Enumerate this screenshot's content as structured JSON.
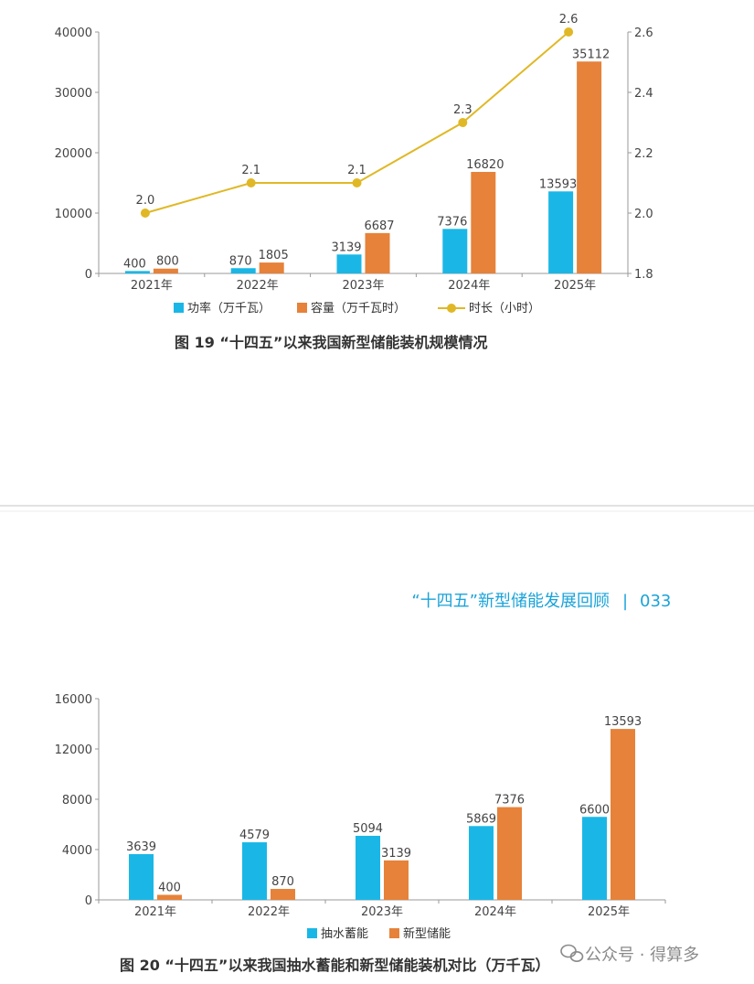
{
  "colors": {
    "power": "#1ab7e6",
    "capacity": "#e6823a",
    "duration": "#e0b826",
    "pumped": "#1ab7e6",
    "new_storage": "#e6823a",
    "accent": "#1aa3d9",
    "axis": "#999999"
  },
  "chart_data": [
    {
      "type": "bar",
      "categories": [
        "2021年",
        "2022年",
        "2023年",
        "2024年",
        "2025年"
      ],
      "series": [
        {
          "name": "功率（万千瓦）",
          "values": [
            400,
            870,
            3139,
            7376,
            13593
          ],
          "axis": "left"
        },
        {
          "name": "容量（万千瓦时）",
          "values": [
            800,
            1805,
            6687,
            16820,
            35112
          ],
          "axis": "left"
        },
        {
          "name": "时长（小时）",
          "type": "line",
          "values": [
            2.0,
            2.1,
            2.1,
            2.3,
            2.6
          ],
          "axis": "right"
        }
      ],
      "ylim": [
        0,
        40000
      ],
      "yticks": [
        "0",
        "10000",
        "20000",
        "30000",
        "40000"
      ],
      "y2lim": [
        1.8,
        2.6
      ],
      "y2ticks": [
        "1.8",
        "2.0",
        "2.2",
        "2.4",
        "2.6"
      ],
      "caption": "图 19 “十四五”以来我国新型储能装机规模情况",
      "legend_position": "bottom"
    },
    {
      "type": "bar",
      "categories": [
        "2021年",
        "2022年",
        "2023年",
        "2024年",
        "2025年"
      ],
      "series": [
        {
          "name": "抽水蓄能",
          "values": [
            3639,
            4579,
            5094,
            5869,
            6600
          ]
        },
        {
          "name": "新型储能",
          "values": [
            400,
            870,
            3139,
            7376,
            13593
          ]
        }
      ],
      "ylim": [
        0,
        16000
      ],
      "yticks": [
        "0",
        "4000",
        "8000",
        "12000",
        "16000"
      ],
      "caption": "图 20 “十四五”以来我国抽水蓄能和新型储能装机对比（万千瓦）",
      "legend_position": "bottom"
    }
  ],
  "page_header": {
    "title": "“十四五”新型储能发展回顾",
    "separator": "|",
    "page_number": "033"
  },
  "watermark": {
    "icon": "wechat-icon",
    "text": "公众号 · 得算多"
  }
}
